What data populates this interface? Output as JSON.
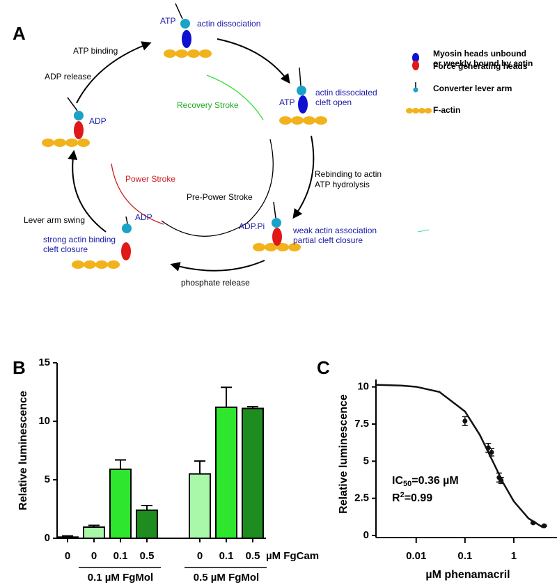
{
  "panel_a": {
    "label": "A",
    "transitions": [
      "ATP binding",
      "ADP release",
      "Lever arm swing",
      "phosphate release",
      [
        "Rebinding to actin",
        "ATP hydrolysis"
      ]
    ],
    "strokes": [
      "Recovery Stroke",
      "Power Stroke",
      "Pre-Power Stroke"
    ],
    "states": [
      {
        "nucleotide": "ATP",
        "description": [
          "actin dissociation"
        ]
      },
      {
        "nucleotide": "ATP",
        "description": [
          "actin dissociated",
          "cleft open"
        ]
      },
      {
        "nucleotide": "ADP.Pi",
        "description": [
          "weak actin association",
          "partial cleft closure"
        ]
      },
      {
        "nucleotide": "ADP",
        "description": [
          "strong actin binding",
          "cleft closure"
        ]
      },
      {
        "nucleotide": "ADP"
      }
    ],
    "legend": [
      [
        "Myosin heads unbound",
        "or weekly bound by actin"
      ],
      "Force generating heads",
      "Converter lever arm",
      "F-actin"
    ]
  },
  "chart_data": [
    {
      "type": "bar",
      "panel": "B",
      "y_label": "Relative luminescence",
      "categories": [
        "0",
        "0",
        "0.1",
        "0.5",
        "0",
        "0.1",
        "0.5"
      ],
      "x_unit": "µM FgCam",
      "groups": [
        "0.1 µM FgMol",
        "0.5 µM FgMol"
      ],
      "values": [
        0.1,
        0.95,
        5.9,
        2.4,
        5.5,
        11.2,
        11.1
      ],
      "errors": [
        0.1,
        0.15,
        0.8,
        0.4,
        1.1,
        1.7,
        0.15
      ],
      "colors": [
        "#ffffff",
        "#a9f7a9",
        "#2ee62e",
        "#1e8c1e",
        "#a9f7a9",
        "#2ee62e",
        "#1e8c1e"
      ],
      "ylim": [
        0,
        15
      ],
      "yticks": [
        0,
        5,
        10,
        15
      ]
    },
    {
      "type": "scatter",
      "panel": "C",
      "y_label": "Relative luminescence",
      "x_label": "µM phenamacril",
      "xscale": "log",
      "xlim": [
        0.0015,
        10
      ],
      "xticks": [
        0.01,
        0.1,
        1,
        10
      ],
      "ylim": [
        0,
        10.5
      ],
      "yticks": [
        0,
        2.5,
        5,
        7.5,
        10
      ],
      "annotation": {
        "ic": "IC",
        "ic_sub": "50",
        "ic_value": "=0.36 µM",
        "r": "R",
        "r_sup": "2",
        "r_value": "=0.99"
      },
      "series": [
        {
          "x": [
            0.1,
            0.3,
            0.35,
            0.5,
            0.55,
            2.5,
            4.2
          ],
          "values": [
            7.7,
            5.9,
            5.6,
            3.9,
            3.7,
            0.85,
            0.65
          ],
          "errors": [
            0.3,
            0.3,
            0.25,
            0.3,
            0.2,
            0.05,
            0.05
          ],
          "color": "#111111"
        },
        {
          "style": "line",
          "x": [
            0.0015,
            0.005,
            0.01,
            0.03,
            0.1,
            0.2,
            0.36,
            0.6,
            1,
            2,
            4
          ],
          "values": [
            10.14,
            10.09,
            10.01,
            9.66,
            8.35,
            6.79,
            5.08,
            3.57,
            2.3,
            1.15,
            0.53
          ],
          "color": "#111111"
        }
      ]
    }
  ]
}
